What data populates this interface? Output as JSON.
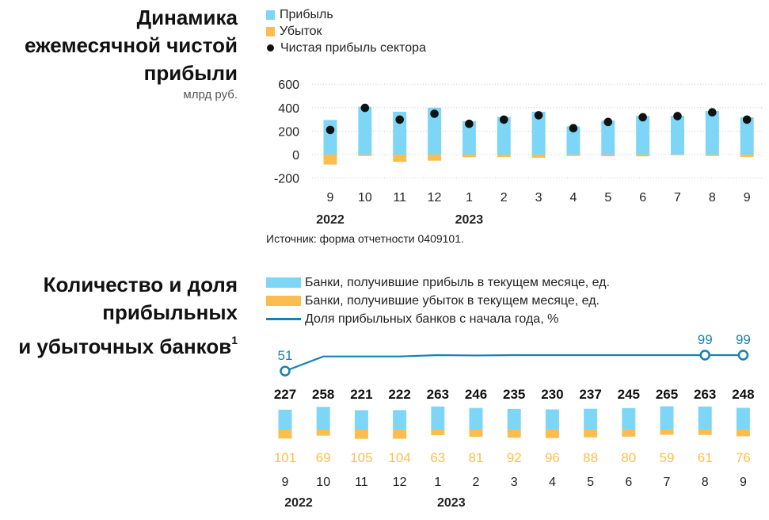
{
  "colors": {
    "profit": "#7dd6f6",
    "loss": "#fbbd4f",
    "dot": "#111111",
    "line": "#1583b0",
    "grid": "#c8c8c8"
  },
  "chart1": {
    "title_lines": [
      "Динамика",
      "ежемесячной чистой",
      "прибыли"
    ],
    "unit": "млрд руб.",
    "legend": {
      "profit": "Прибыль",
      "loss": "Убыток",
      "net": "Чистая прибыль сектора"
    },
    "source": "Источник: форма отчетности 0409101."
  },
  "chart2": {
    "title_lines": [
      "Количество и доля",
      "прибыльных",
      "и убыточных банков"
    ],
    "footnote": "1",
    "legend": {
      "profit": "Банки, получившие прибыль в текущем месяце, ед.",
      "loss": "Банки, получившие убыток в текущем месяце, ед.",
      "share": "Доля прибыльных банков с начала года, %"
    }
  },
  "chart_data": [
    {
      "type": "bar",
      "title": "Динамика ежемесячной чистой прибыли",
      "ylabel": "млрд руб.",
      "categories": [
        "9",
        "10",
        "11",
        "12",
        "1",
        "2",
        "3",
        "4",
        "5",
        "6",
        "7",
        "8",
        "9"
      ],
      "year_labels": [
        {
          "label": "2022",
          "index": 0
        },
        {
          "label": "2023",
          "index": 4
        }
      ],
      "yticks": [
        "600",
        "400",
        "200",
        "0",
        "-200"
      ],
      "yticks_values": [
        600,
        400,
        200,
        0,
        -200
      ],
      "ylim": [
        -200,
        600
      ],
      "series": [
        {
          "name": "Прибыль",
          "kind": "bar",
          "values": [
            295,
            408,
            365,
            400,
            285,
            320,
            365,
            240,
            290,
            330,
            330,
            372,
            318
          ]
        },
        {
          "name": "Убыток",
          "kind": "bar",
          "values": [
            -85,
            -12,
            -62,
            -52,
            -22,
            -20,
            -28,
            -12,
            -14,
            -15,
            -5,
            -12,
            -20
          ]
        },
        {
          "name": "Чистая прибыль сектора",
          "kind": "scatter",
          "values": [
            210,
            398,
            298,
            348,
            262,
            298,
            335,
            225,
            278,
            318,
            328,
            360,
            298
          ]
        }
      ]
    },
    {
      "type": "bar",
      "title": "Количество и доля прибыльных и убыточных банков",
      "categories": [
        "9",
        "10",
        "11",
        "12",
        "1",
        "2",
        "3",
        "4",
        "5",
        "6",
        "7",
        "8",
        "9"
      ],
      "year_labels": [
        {
          "label": "2022",
          "index": 0
        },
        {
          "label": "2023",
          "index": 4
        }
      ],
      "series": [
        {
          "name": "Банки, получившие прибыль в текущем месяце, ед.",
          "kind": "bar",
          "values": [
            227,
            258,
            221,
            222,
            263,
            246,
            235,
            230,
            237,
            245,
            265,
            263,
            248
          ]
        },
        {
          "name": "Банки, получившие убыток в текущем месяце, ед.",
          "kind": "bar",
          "values": [
            101,
            69,
            105,
            104,
            63,
            81,
            92,
            96,
            88,
            80,
            59,
            61,
            76
          ]
        },
        {
          "name": "Доля прибыльных банков с начала года, %",
          "kind": "line",
          "values": [
            51,
            95,
            95,
            95,
            99,
            98,
            99,
            99,
            99,
            99,
            99,
            99,
            99
          ],
          "labeled": [
            {
              "index": 0,
              "label": "51"
            },
            {
              "index": 11,
              "label": "99"
            },
            {
              "index": 12,
              "label": "99"
            }
          ]
        }
      ]
    }
  ]
}
